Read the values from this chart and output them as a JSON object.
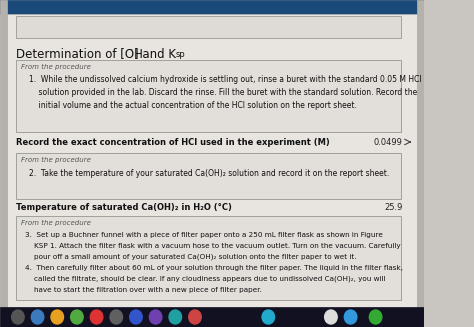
{
  "bg_color": "#c9c5c0",
  "page_color": "#e8e5e0",
  "top_bar_color": "#1a4a7a",
  "box_bg": "#e2deda",
  "box_border": "#a0a09a",
  "title": "Determination of [OH",
  "title_minus": "⁻",
  "title_rest": "] and K",
  "title_sub": "sp",
  "proc_label": "From the procedure",
  "step1_text": "1.  While the undissolved calcium hydroxide is settling out, rinse a buret with the standard 0.05 M HCl\n    solution provided in the lab. Discard the rinse. Fill the buret with the standard solution. Record the\n    initial volume and the actual concentration of the HCl solution on the report sheet.",
  "q1_label": "Record the exact concentration of HCl used in the experiment (M)",
  "q1_value": "0.0499",
  "step2_text": "2.  Take the temperature of your saturated Ca(OH)₂ solution and record it on the report sheet.",
  "q2_label": "Temperature of saturated Ca(OH)₂ in H₂O (°C)",
  "q2_value": "25.9",
  "proc_label2": "From the procedure",
  "step34_line1": "3.  Set up a Buchner funnel with a piece of filter paper onto a 250 mL filter flask as shown in Figure",
  "step34_line2": "    KSP 1. Attach the filter flask with a vacuum hose to the vacuum outlet. Turn on the vacuum. Carefully",
  "step34_line3": "    pour off a small amount of your saturated Ca(OH)₂ solution onto the filter paper to wet it.",
  "step34_line4": "4.  Then carefully filter about 60 mL of your solution through the filter paper. The liquid in the filter flask,",
  "step34_line5": "    called the filtrate, should be clear. If any cloudiness appears due to undissolved Ca(OH)₂, you will",
  "step34_line6": "    have to start the filtration over with a new piece of filter paper.",
  "taskbar_color": "#1a1a2e",
  "icon_colors": [
    "#555555",
    "#3a7abd",
    "#e8a020",
    "#50aa40",
    "#dd3333",
    "#606060",
    "#7040b0",
    "#20a0a0",
    "#cc4444",
    "#3344aa",
    "#22aacc",
    "#dddddd"
  ],
  "top_page_box_color": "#dedad5",
  "arrow_color": "#444444"
}
